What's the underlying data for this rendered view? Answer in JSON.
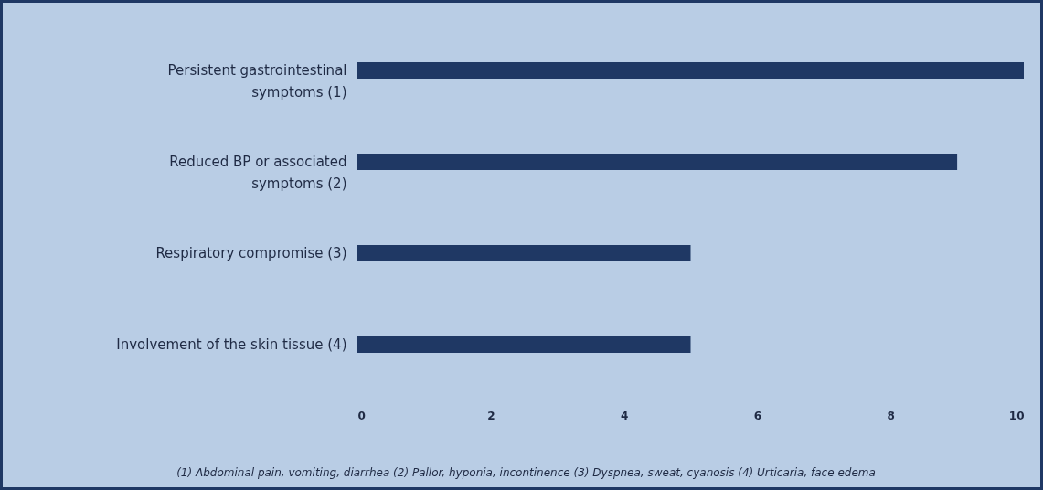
{
  "chart_data": {
    "type": "bar",
    "orientation": "horizontal",
    "categories": [
      "Persistent gastrointestinal symptoms (1)",
      "Reduced BP or associated symptoms (2)",
      "Respiratory compromise (3)",
      "Involvement of the skin tissue (4)"
    ],
    "values": [
      10,
      9,
      5,
      5
    ],
    "color": "#1f3864",
    "xlim": [
      0,
      10
    ],
    "xticks": [
      0,
      2,
      4,
      6,
      8,
      10
    ],
    "grid": false,
    "annotations": [
      "(1) Abdominal pain, vomiting, diarrhea (2) Pallor, hyponia, incontinence (3) Dyspnea, sweat, cyanosis (4) Urticaria, face edema"
    ]
  }
}
